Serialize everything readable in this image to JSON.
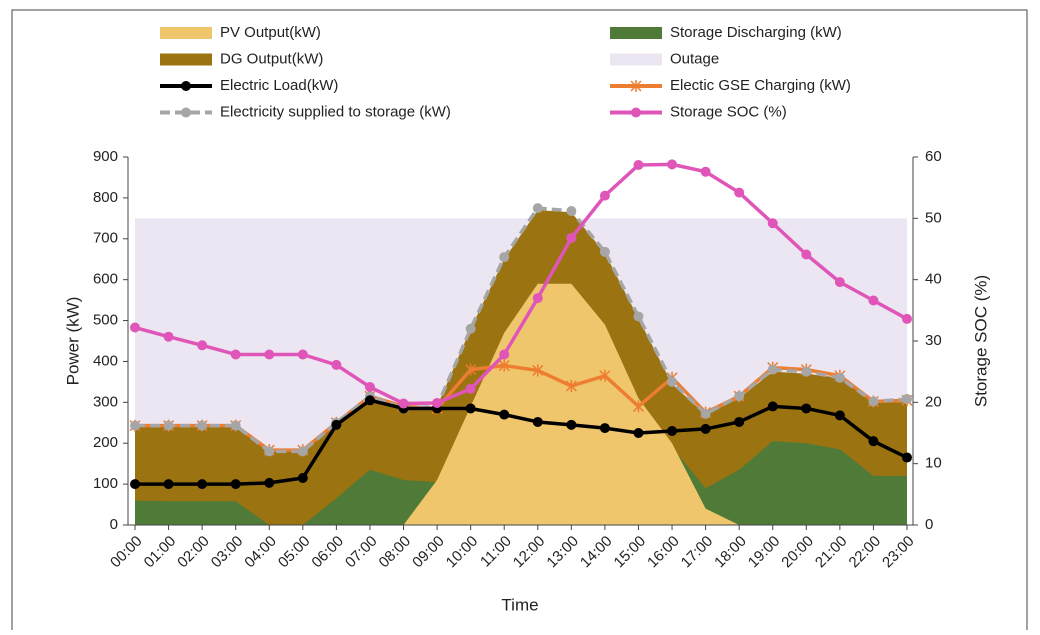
{
  "chart_data": {
    "type": "combo",
    "x_label": "Time",
    "y_label": "Power (kW)",
    "y2_label": "Storage SOC (%)",
    "categories": [
      "00:00",
      "01:00",
      "02:00",
      "03:00",
      "04:00",
      "05:00",
      "06:00",
      "07:00",
      "08:00",
      "09:00",
      "10:00",
      "11:00",
      "12:00",
      "13:00",
      "14:00",
      "15:00",
      "16:00",
      "17:00",
      "18:00",
      "19:00",
      "20:00",
      "21:00",
      "22:00",
      "23:00"
    ],
    "ylim": [
      0,
      900
    ],
    "yticks": [
      0,
      100,
      200,
      300,
      400,
      500,
      600,
      700,
      800,
      900
    ],
    "y2lim": [
      0,
      60
    ],
    "y2ticks": [
      0,
      10,
      20,
      30,
      40,
      50,
      60
    ],
    "series": [
      {
        "name": "PV Output(kW)",
        "kind": "area",
        "color": "#f0c66c",
        "values": [
          0,
          0,
          0,
          0,
          0,
          0,
          0,
          0,
          0,
          110,
          290,
          470,
          590,
          590,
          490,
          310,
          200,
          40,
          0,
          0,
          0,
          0,
          0,
          0
        ]
      },
      {
        "name": "Storage Discharging (kW)",
        "kind": "area",
        "color": "#4f7a37",
        "values": [
          60,
          58,
          58,
          58,
          0,
          0,
          65,
          135,
          110,
          105,
          0,
          0,
          0,
          0,
          0,
          0,
          190,
          90,
          135,
          205,
          200,
          185,
          120,
          120
        ]
      },
      {
        "name": "DG Output(kW)",
        "kind": "area",
        "color": "#9b7311",
        "values": [
          240,
          240,
          240,
          240,
          180,
          180,
          250,
          315,
          285,
          290,
          480,
          650,
          770,
          765,
          665,
          505,
          345,
          270,
          310,
          375,
          370,
          360,
          300,
          300
        ]
      },
      {
        "name": "Outage",
        "kind": "area",
        "color": "#ece6f2",
        "values": [
          750,
          750,
          750,
          750,
          750,
          750,
          750,
          750,
          750,
          750,
          750,
          750,
          750,
          750,
          750,
          750,
          750,
          750,
          750,
          750,
          750,
          750,
          750,
          750
        ]
      },
      {
        "name": "Electric Load(kW)",
        "kind": "line",
        "marker": "circle",
        "color": "#000000",
        "values": [
          100,
          100,
          100,
          100,
          103,
          115,
          245,
          305,
          285,
          285,
          285,
          270,
          252,
          245,
          237,
          225,
          230,
          235,
          252,
          290,
          285,
          268,
          205,
          165
        ]
      },
      {
        "name": "Electic GSE Charging (kW)",
        "kind": "line",
        "marker": "star",
        "color": "#ed7d31",
        "values": [
          243,
          243,
          243,
          243,
          183,
          183,
          250,
          315,
          290,
          285,
          380,
          390,
          378,
          340,
          365,
          290,
          360,
          275,
          315,
          385,
          380,
          365,
          302,
          305
        ]
      },
      {
        "name": "Electricity supplied to storage (kW)",
        "kind": "line",
        "marker": "circle",
        "dashed": true,
        "color": "#a6a6a6",
        "values": [
          243,
          243,
          243,
          243,
          180,
          180,
          250,
          315,
          285,
          290,
          480,
          655,
          775,
          768,
          668,
          510,
          350,
          272,
          315,
          380,
          375,
          360,
          302,
          308
        ]
      },
      {
        "name": "Storage SOC (%)",
        "kind": "line",
        "marker": "circle",
        "axis": "y2",
        "color": "#e056b8",
        "values": [
          32.2,
          30.7,
          29.3,
          27.8,
          27.8,
          27.8,
          26.1,
          22.5,
          19.8,
          19.9,
          22.2,
          27.8,
          37,
          46.8,
          53.7,
          58.7,
          58.8,
          57.6,
          54.2,
          49.2,
          44.1,
          39.6,
          36.6,
          33.6
        ]
      }
    ]
  }
}
